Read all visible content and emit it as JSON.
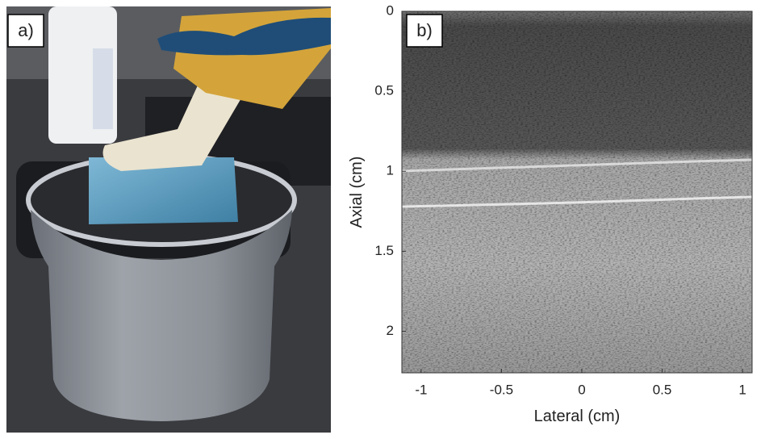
{
  "figure": {
    "panel_a": {
      "label": "a)"
    },
    "panel_b": {
      "label": "b)",
      "x_label": "Lateral (cm)",
      "y_label": "Axial (cm)",
      "xlim": [
        -1.12,
        1.06
      ],
      "ylim": [
        0,
        2.26
      ],
      "xticks": [
        -1,
        -0.5,
        0,
        0.5,
        1
      ],
      "yticks": [
        0,
        0.5,
        1,
        1.5,
        2
      ]
    }
  }
}
